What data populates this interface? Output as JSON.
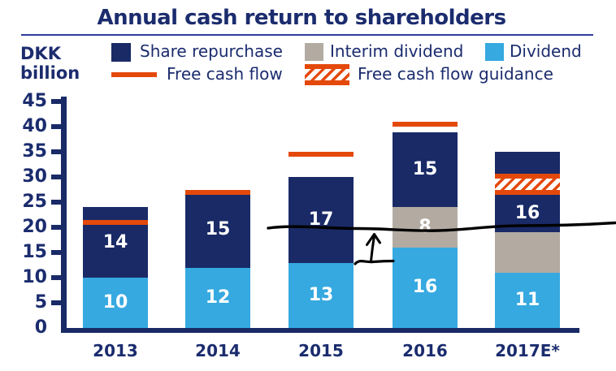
{
  "title": "Annual cash return to shareholders",
  "y_axis": {
    "unit_label": "DKK billion"
  },
  "legend": {
    "row1": [
      {
        "label": "Share repurchase",
        "swatch": "navy-square"
      },
      {
        "label": "Interim dividend",
        "swatch": "gray-square"
      },
      {
        "label": "Dividend",
        "swatch": "blue-square"
      }
    ],
    "row2": [
      {
        "label": "Free cash flow",
        "swatch": "orange-line"
      },
      {
        "label": "Free cash flow guidance",
        "swatch": "orange-hatch"
      }
    ]
  },
  "colors": {
    "navy": "#192A66",
    "blue": "#36A9E0",
    "gray": "#B3ABA2",
    "orange": "#E4490C",
    "text": "#1B2C6E",
    "annotation": "#000000"
  },
  "chart_data": {
    "type": "bar",
    "stacked": true,
    "categories": [
      "2013",
      "2014",
      "2015",
      "2016",
      "2017E*"
    ],
    "series": [
      {
        "name": "Dividend",
        "color_key": "blue",
        "values": [
          10,
          12,
          13,
          16,
          11
        ],
        "labels": [
          "10",
          "12",
          "13",
          "16",
          "11"
        ]
      },
      {
        "name": "Interim dividend",
        "color_key": "gray",
        "values": [
          0,
          0,
          0,
          8,
          8
        ],
        "labels": [
          "",
          "",
          "",
          "8",
          ""
        ]
      },
      {
        "name": "Share repurchase",
        "color_key": "navy",
        "values": [
          14,
          15,
          17,
          15,
          16
        ],
        "labels": [
          "14",
          "15",
          "17",
          "15",
          "16"
        ]
      }
    ],
    "free_cash_flow": {
      "name": "Free cash flow",
      "values": [
        21,
        27,
        34.5,
        40.5,
        null
      ]
    },
    "free_cash_flow_guidance": {
      "name": "Free cash flow guidance",
      "category": "2017E*",
      "range": [
        26.5,
        30.7
      ]
    },
    "ylim": [
      0,
      45
    ],
    "ytick_step": 5,
    "grid": false,
    "annotations": [
      {
        "type": "hand-drawn-line",
        "desc": "freehand horizontal level line across right half of chart",
        "approx_value": 20
      },
      {
        "type": "hand-drawn-arrow",
        "desc": "upward arrow between 2015 and 2016 bars",
        "from_value": 13,
        "to_value": 19
      }
    ]
  }
}
